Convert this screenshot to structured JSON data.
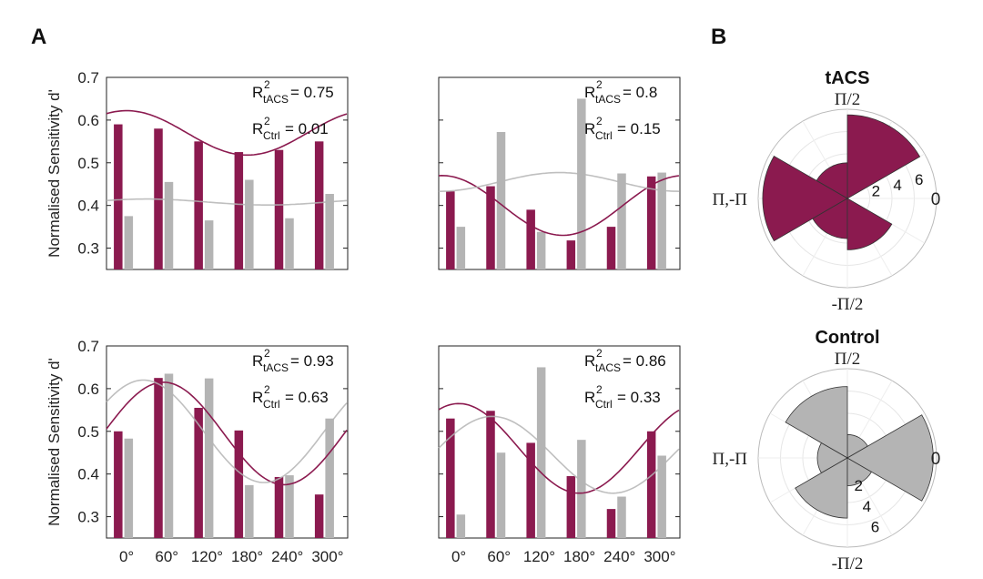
{
  "panel_labels": {
    "a": "A",
    "b": "B"
  },
  "y_axis_label": "Normalised Sensitivity d'",
  "colors": {
    "tacs": "#8b1a4f",
    "ctrl": "#b4b4b4"
  },
  "r2": {
    "r_symbol": "R",
    "superscript": "2",
    "sub_tacs": "tACS",
    "sub_ctrl": "Ctrl"
  },
  "polar_tick_labels": [
    "2",
    "4",
    "6"
  ],
  "chart_data": [
    {
      "type": "bar",
      "position": "top-left",
      "categories": [
        "0°",
        "60°",
        "120°",
        "180°",
        "240°",
        "300°"
      ],
      "show_x_ticks": false,
      "show_y_ticks": true,
      "ylim": [
        0.25,
        0.7
      ],
      "yticks": [
        "0.3",
        "0.4",
        "0.5",
        "0.6",
        "0.7"
      ],
      "series": [
        {
          "key": "tacs",
          "values": [
            0.59,
            0.58,
            0.55,
            0.525,
            0.53,
            0.55
          ]
        },
        {
          "key": "ctrl",
          "values": [
            0.375,
            0.455,
            0.365,
            0.46,
            0.37,
            0.427
          ]
        }
      ],
      "fits": [
        {
          "key": "tacs",
          "mean": 0.57,
          "amp": 0.052,
          "peak_deg": 30
        },
        {
          "key": "ctrl",
          "mean": 0.408,
          "amp": 0.007,
          "peak_deg": 60
        }
      ],
      "r2_tacs": "= 0.75",
      "r2_ctrl": "= 0.01"
    },
    {
      "type": "bar",
      "position": "top-right",
      "categories": [
        "0°",
        "60°",
        "120°",
        "180°",
        "240°",
        "300°"
      ],
      "show_x_ticks": false,
      "show_y_ticks": false,
      "ylim": [
        0.25,
        0.7
      ],
      "yticks": [
        "0.3",
        "0.4",
        "0.5",
        "0.6",
        "0.7"
      ],
      "series": [
        {
          "key": "tacs",
          "values": [
            0.433,
            0.445,
            0.39,
            0.318,
            0.35,
            0.468
          ]
        },
        {
          "key": "ctrl",
          "values": [
            0.35,
            0.572,
            0.338,
            0.65,
            0.475,
            0.477
          ]
        }
      ],
      "fits": [
        {
          "key": "tacs",
          "mean": 0.4,
          "amp": 0.07,
          "peak_deg": 5
        },
        {
          "key": "ctrl",
          "mean": 0.455,
          "amp": 0.022,
          "peak_deg": 180
        }
      ],
      "r2_tacs": "= 0.8",
      "r2_ctrl": "= 0.15"
    },
    {
      "type": "bar",
      "position": "bottom-left",
      "categories": [
        "0°",
        "60°",
        "120°",
        "180°",
        "240°",
        "300°"
      ],
      "show_x_ticks": true,
      "show_y_ticks": true,
      "ylim": [
        0.25,
        0.7
      ],
      "yticks": [
        "0.3",
        "0.4",
        "0.5",
        "0.6",
        "0.7"
      ],
      "series": [
        {
          "key": "tacs",
          "values": [
            0.5,
            0.625,
            0.555,
            0.502,
            0.393,
            0.352
          ]
        },
        {
          "key": "ctrl",
          "values": [
            0.483,
            0.635,
            0.624,
            0.374,
            0.397,
            0.53
          ]
        }
      ],
      "fits": [
        {
          "key": "tacs",
          "mean": 0.495,
          "amp": 0.12,
          "peak_deg": 85
        },
        {
          "key": "ctrl",
          "mean": 0.5,
          "amp": 0.12,
          "peak_deg": 55
        }
      ],
      "r2_tacs": "= 0.93",
      "r2_ctrl": "= 0.63"
    },
    {
      "type": "bar",
      "position": "bottom-right",
      "categories": [
        "0°",
        "60°",
        "120°",
        "180°",
        "240°",
        "300°"
      ],
      "show_x_ticks": true,
      "show_y_ticks": false,
      "ylim": [
        0.25,
        0.7
      ],
      "yticks": [
        "0.3",
        "0.4",
        "0.5",
        "0.6",
        "0.7"
      ],
      "series": [
        {
          "key": "tacs",
          "values": [
            0.53,
            0.548,
            0.473,
            0.395,
            0.318,
            0.5
          ]
        },
        {
          "key": "ctrl",
          "values": [
            0.305,
            0.45,
            0.65,
            0.48,
            0.347,
            0.443
          ]
        }
      ],
      "fits": [
        {
          "key": "tacs",
          "mean": 0.46,
          "amp": 0.105,
          "peak_deg": 30
        },
        {
          "key": "ctrl",
          "mean": 0.445,
          "amp": 0.09,
          "peak_deg": 80
        }
      ],
      "r2_tacs": "= 0.86",
      "r2_ctrl": "= 0.33"
    },
    {
      "type": "polar-histogram",
      "title": "tACS",
      "series_key": "tacs",
      "rmax": 8,
      "rings": [
        2,
        4,
        6,
        8
      ],
      "direction_labels": {
        "top": "Π/2",
        "left": "Π,-Π",
        "bottom": "-Π/2",
        "right": "0"
      },
      "bins": [
        {
          "from": 30,
          "to": 90,
          "value": 7.5
        },
        {
          "from": 90,
          "to": 150,
          "value": 3.2
        },
        {
          "from": 150,
          "to": 210,
          "value": 7.6
        },
        {
          "from": 210,
          "to": 270,
          "value": 3.6
        },
        {
          "from": 270,
          "to": 330,
          "value": 4.6
        }
      ]
    },
    {
      "type": "polar-histogram",
      "title": "Control",
      "series_key": "ctrl",
      "rmax": 8,
      "rings": [
        2,
        4,
        6,
        8
      ],
      "direction_labels": {
        "top": "Π/2",
        "left": "Π,-Π",
        "bottom": "-Π/2",
        "right": "0"
      },
      "bins": [
        {
          "from": 30,
          "to": 90,
          "value": 2.1
        },
        {
          "from": 90,
          "to": 150,
          "value": 6.4
        },
        {
          "from": 150,
          "to": 210,
          "value": 2.7
        },
        {
          "from": 210,
          "to": 270,
          "value": 5.4
        },
        {
          "from": 270,
          "to": 330,
          "value": 2.5
        },
        {
          "from": -30,
          "to": 30,
          "value": 7.7
        }
      ]
    }
  ]
}
